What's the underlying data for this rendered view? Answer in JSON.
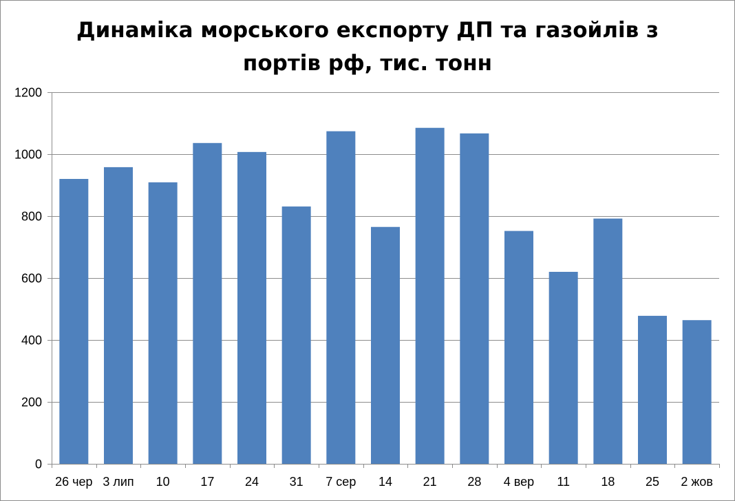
{
  "chart_data": {
    "type": "bar",
    "title": "Динаміка морського експорту ДП та газойлів з портів рф, тис. тонн",
    "title_lines": [
      "Динаміка морського експорту ДП та газойлів з",
      "портів рф, тис. тонн"
    ],
    "categories": [
      "26 чер",
      "3 лип",
      "10",
      "17",
      "24",
      "31",
      "7 сер",
      "14",
      "21",
      "28",
      "4 вер",
      "11",
      "18",
      "25",
      "2 жов"
    ],
    "values": [
      920,
      958,
      909,
      1036,
      1007,
      831,
      1074,
      765,
      1085,
      1067,
      752,
      620,
      792,
      478,
      464
    ],
    "xlabel": "",
    "ylabel": "",
    "ylim": [
      0,
      1200
    ],
    "yticks": [
      "0",
      "200",
      "400",
      "600",
      "800",
      "1000",
      "1200"
    ],
    "grid": true,
    "legend": "none",
    "colors": {
      "bar": "#4f81bd",
      "grid": "#8c8c8c",
      "axis": "#8c8c8c"
    }
  }
}
